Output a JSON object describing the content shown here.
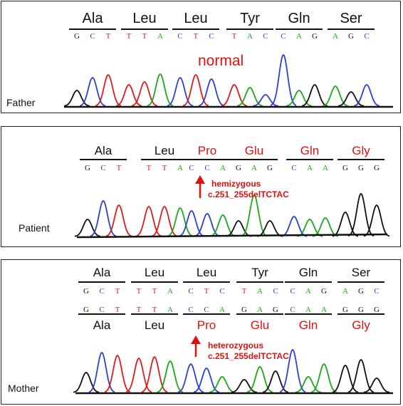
{
  "colors": {
    "A": "#1aa81a",
    "C": "#2a3fd6",
    "G": "#111111",
    "T": "#e01a1a",
    "mut": "#e01010",
    "normal_aa": "#111111"
  },
  "father": {
    "label": "Father",
    "annotation": "normal",
    "codons": [
      {
        "aa": "Ala",
        "nts": [
          "G",
          "C",
          "T"
        ]
      },
      {
        "aa": "Leu",
        "nts": [
          "T",
          "T",
          "A"
        ]
      },
      {
        "aa": "Leu",
        "nts": [
          "C",
          "T",
          "C"
        ]
      },
      {
        "aa": "Tyr",
        "nts": [
          "T",
          "A",
          "C"
        ]
      },
      {
        "aa": "Gln",
        "nts": [
          "C",
          "A",
          "G"
        ]
      },
      {
        "aa": "Ser",
        "nts": [
          "A",
          "G",
          "C"
        ]
      }
    ]
  },
  "patient": {
    "label": "Patient",
    "annotation_line1": "hemizygous",
    "annotation_line2": "c.251_255delTCTAC",
    "codons": [
      {
        "aa": "Ala",
        "nts": [
          "G",
          "C",
          "T"
        ],
        "mutated": false
      },
      {
        "aa": "Leu",
        "nts": [
          "T",
          "T",
          "A"
        ],
        "mutated": false
      },
      {
        "aa": "Pro",
        "nts": [
          "C",
          "C",
          "A"
        ],
        "mutated": true
      },
      {
        "aa": "Glu",
        "nts": [
          "G",
          "A",
          "G"
        ],
        "mutated": true
      },
      {
        "aa": "Gln",
        "nts": [
          "C",
          "A",
          "A"
        ],
        "mutated": true
      },
      {
        "aa": "Gly",
        "nts": [
          "G",
          "G",
          "G"
        ],
        "mutated": true
      }
    ]
  },
  "mother": {
    "label": "Mother",
    "annotation_line1": "heterozygous",
    "annotation_line2": "c.251_255delTCTAC",
    "top_codons": [
      {
        "aa": "Ala",
        "nts": [
          "G",
          "C",
          "T"
        ]
      },
      {
        "aa": "Leu",
        "nts": [
          "T",
          "T",
          "A"
        ]
      },
      {
        "aa": "Leu",
        "nts": [
          "C",
          "T",
          "C"
        ]
      },
      {
        "aa": "Tyr",
        "nts": [
          "T",
          "A",
          "C"
        ]
      },
      {
        "aa": "Gln",
        "nts": [
          "C",
          "A",
          "G"
        ]
      },
      {
        "aa": "Ser",
        "nts": [
          "A",
          "G",
          "C"
        ]
      }
    ],
    "bottom_codons": [
      {
        "aa": "Ala",
        "nts": [
          "G",
          "C",
          "T"
        ],
        "mutated": false
      },
      {
        "aa": "Leu",
        "nts": [
          "T",
          "T",
          "A"
        ],
        "mutated": false
      },
      {
        "aa": "Pro",
        "nts": [
          "C",
          "C",
          "A"
        ],
        "mutated": true
      },
      {
        "aa": "Glu",
        "nts": [
          "G",
          "A",
          "G"
        ],
        "mutated": true
      },
      {
        "aa": "Gln",
        "nts": [
          "C",
          "A",
          "A"
        ],
        "mutated": true
      },
      {
        "aa": "Gly",
        "nts": [
          "G",
          "G",
          "G"
        ],
        "mutated": true
      }
    ]
  }
}
